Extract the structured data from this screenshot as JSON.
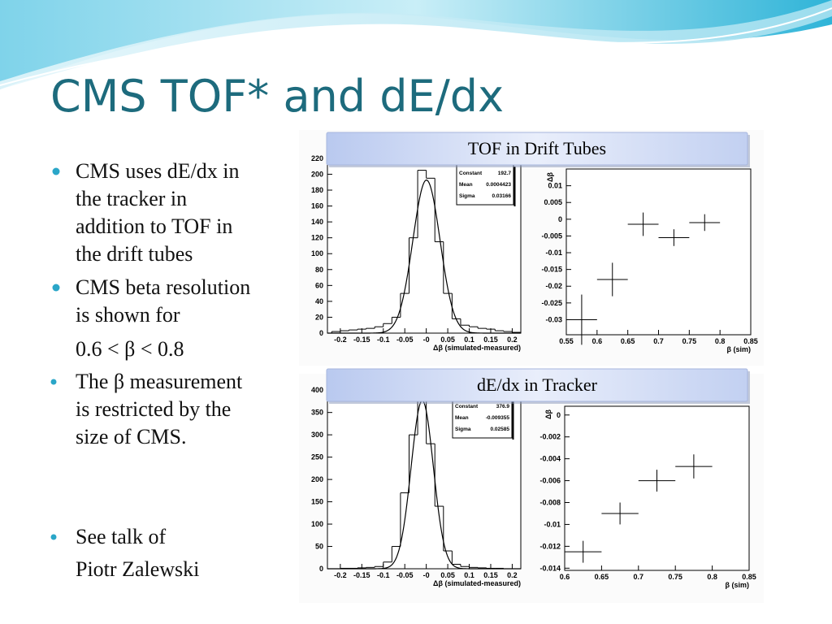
{
  "title": "CMS TOF* and dE/dx",
  "bullets": [
    {
      "lines": [
        "CMS uses dE/dx in",
        "the tracker in",
        "addition to TOF in",
        "the drift tubes"
      ]
    },
    {
      "lines": [
        "CMS beta resolution",
        "is shown for"
      ],
      "continuation": "0.6 < β < 0.8"
    },
    {
      "lines": [
        "The β measurement",
        "is restricted by the",
        "size of CMS."
      ]
    },
    {
      "lines": [
        "See talk of"
      ],
      "continuation": "Piotr Zalewski"
    }
  ],
  "panels": [
    "TOF in Drift Tubes",
    "dE/dx in Tracker"
  ],
  "chart_data": [
    {
      "type": "histogram",
      "bins": [
        -0.22,
        -0.2,
        -0.18,
        -0.16,
        -0.14,
        -0.12,
        -0.1,
        -0.08,
        -0.06,
        -0.04,
        -0.02,
        0,
        0.02,
        0.04,
        0.06,
        0.08,
        0.1,
        0.12,
        0.14,
        0.16,
        0.18,
        0.2,
        0.22
      ],
      "counts": [
        2,
        3,
        4,
        5,
        6,
        8,
        12,
        20,
        50,
        120,
        205,
        195,
        115,
        50,
        18,
        10,
        8,
        6,
        5,
        3,
        2,
        1
      ],
      "xlim": [
        -0.23,
        0.22
      ],
      "ylim": [
        0,
        225
      ],
      "xticks": [
        -0.2,
        -0.15,
        -0.1,
        -0.05,
        {
          "value": 0,
          "label": "-0"
        },
        0.05,
        0.1,
        0.15,
        0.2
      ],
      "yticks": [
        0,
        20,
        40,
        60,
        80,
        100,
        120,
        140,
        160,
        180,
        200,
        220
      ],
      "xlabel": "Δβ (simulated-measured)",
      "stats": [
        {
          "label": "Constant",
          "value": 192.7
        },
        {
          "label": "Mean",
          "value": 0.0004423
        },
        {
          "label": "Sigma",
          "value": 0.03166
        }
      ]
    },
    {
      "type": "scatter",
      "x": [
        0.575,
        0.625,
        0.675,
        0.725,
        0.775
      ],
      "values": [
        -0.03,
        -0.018,
        -0.0015,
        -0.0055,
        -0.001
      ],
      "x_errors": [
        0.025,
        0.025,
        0.025,
        0.025,
        0.025
      ],
      "errors": [
        0.0075,
        0.005,
        0.0035,
        0.0025,
        0.0025
      ],
      "xlim": [
        0.55,
        0.85
      ],
      "ylim": [
        -0.0345,
        0.015
      ],
      "xticks": [
        0.55,
        0.6,
        0.65,
        0.7,
        0.75,
        0.8,
        0.85
      ],
      "yticks": [
        -0.03,
        -0.025,
        -0.02,
        -0.015,
        -0.01,
        -0.005,
        0,
        0.005,
        0.01
      ],
      "xlabel": "β (sim)",
      "ylabel": "Δβ"
    },
    {
      "type": "histogram",
      "bins": [
        -0.22,
        -0.2,
        -0.18,
        -0.16,
        -0.14,
        -0.12,
        -0.1,
        -0.08,
        -0.06,
        -0.04,
        -0.02,
        0,
        0.02,
        0.04,
        0.06,
        0.08,
        0.1,
        0.12,
        0.14,
        0.16,
        0.18,
        0.2,
        0.22
      ],
      "counts": [
        0,
        1,
        1,
        2,
        3,
        5,
        15,
        50,
        170,
        300,
        390,
        280,
        140,
        40,
        10,
        5,
        3,
        2,
        1,
        1,
        0,
        0
      ],
      "xlim": [
        -0.23,
        0.22
      ],
      "ylim": [
        0,
        404
      ],
      "xticks": [
        -0.2,
        -0.15,
        -0.1,
        -0.05,
        {
          "value": 0,
          "label": "-0"
        },
        0.05,
        0.1,
        0.15,
        0.2
      ],
      "yticks": [
        0,
        50,
        100,
        150,
        200,
        250,
        300,
        350,
        400
      ],
      "xlabel": "Δβ (simulated-measured)",
      "stats": [
        {
          "label": "Constant",
          "value": 376.9
        },
        {
          "label": "Mean",
          "value": -0.009355
        },
        {
          "label": "Sigma",
          "value": 0.02585
        }
      ]
    },
    {
      "type": "scatter",
      "x": [
        0.625,
        0.675,
        0.725,
        0.775
      ],
      "values": [
        -0.0125,
        -0.009,
        -0.006,
        -0.0047
      ],
      "x_errors": [
        0.025,
        0.025,
        0.025,
        0.025
      ],
      "errors": [
        0.001,
        0.001,
        0.001,
        0.0011
      ],
      "xlim": [
        0.6,
        0.85
      ],
      "ylim": [
        -0.0142,
        0.0008
      ],
      "xticks": [
        0.6,
        0.65,
        0.7,
        0.75,
        0.8,
        0.85
      ],
      "yticks": [
        -0.014,
        -0.012,
        -0.01,
        -0.008,
        -0.006,
        -0.004,
        -0.002,
        0
      ],
      "xlabel": "β (sim)",
      "ylabel": "Δβ"
    }
  ]
}
